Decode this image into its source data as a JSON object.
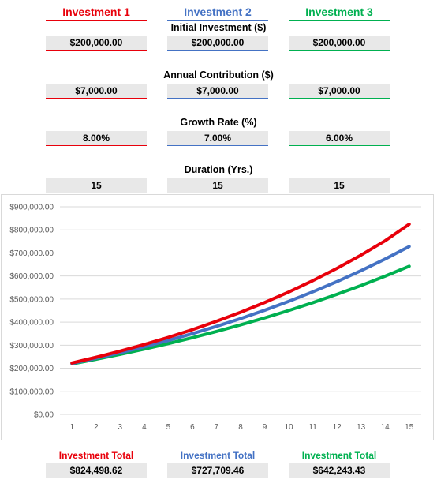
{
  "columns": [
    {
      "title": "Investment 1",
      "color": "#e8000b"
    },
    {
      "title": "Investment 2",
      "color": "#4472c4"
    },
    {
      "title": "Investment 3",
      "color": "#00b050"
    }
  ],
  "inputs": {
    "initial": {
      "label": "Initial Investment ($)",
      "values": [
        "$200,000.00",
        "$200,000.00",
        "$200,000.00"
      ]
    },
    "contribution": {
      "label": "Annual Contribution ($)",
      "values": [
        "$7,000.00",
        "$7,000.00",
        "$7,000.00"
      ]
    },
    "growth": {
      "label": "Growth Rate (%)",
      "values": [
        "8.00%",
        "7.00%",
        "6.00%"
      ]
    },
    "duration": {
      "label": "Duration (Yrs.)",
      "values": [
        "15",
        "15",
        "15"
      ]
    }
  },
  "totals": [
    {
      "label": "Investment Total",
      "value": "$824,498.62"
    },
    {
      "label": "Investment Total",
      "value": "$727,709.46"
    },
    {
      "label": "Investment Total",
      "value": "$642,243.43"
    }
  ],
  "chart_data": {
    "type": "line",
    "x": [
      1,
      2,
      3,
      4,
      5,
      6,
      7,
      8,
      9,
      10,
      11,
      12,
      13,
      14,
      15
    ],
    "ylim": [
      0,
      900000
    ],
    "yticks": [
      0,
      100000,
      200000,
      300000,
      400000,
      500000,
      600000,
      700000,
      800000,
      900000
    ],
    "ytick_labels": [
      "$0.00",
      "$100,000.00",
      "$200,000.00",
      "$300,000.00",
      "$400,000.00",
      "$500,000.00",
      "$600,000.00",
      "$700,000.00",
      "$800,000.00",
      "$900,000.00"
    ],
    "grid": true,
    "series": [
      {
        "color": "#e8000b",
        "values": [
          223000,
          247640,
          274251,
          302991,
          334030,
          367553,
          403757,
          442858,
          485087,
          530694,
          579950,
          633146,
          690598,
          752646,
          824499
        ]
      },
      {
        "color": "#4472c4",
        "values": [
          221000,
          243470,
          267513,
          293239,
          320766,
          350220,
          381735,
          415457,
          451539,
          490147,
          531458,
          575660,
          622956,
          673563,
          727709
        ]
      },
      {
        "color": "#00b050",
        "values": [
          219000,
          239140,
          260488,
          283118,
          307105,
          332531,
          359483,
          388052,
          418335,
          450435,
          484461,
          520529,
          558760,
          599286,
          642243
        ]
      }
    ]
  }
}
